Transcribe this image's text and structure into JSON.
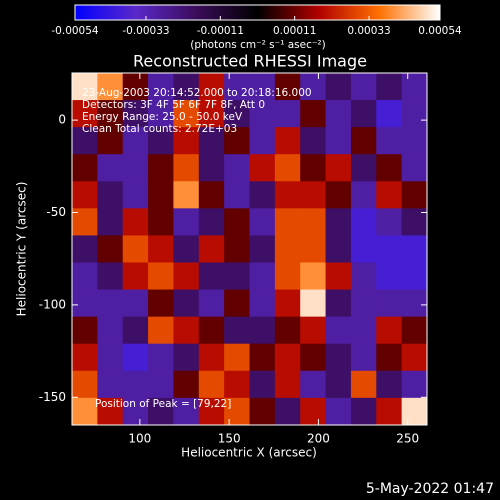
{
  "chart_data": {
    "type": "heatmap",
    "title": "Reconstructed RHESSI Image",
    "x_label": "Heliocentric X (arcsec)",
    "y_label": "Heliocentric Y (arcsec)",
    "colorbar_label": "(photons cm⁻² s⁻¹ asec⁻²)",
    "annotations": [
      "23-Aug-2003 20:14:52.000 to 20:18:16.000",
      "Detectors: 3F 4F 5F 6F 7F 8F, Att 0",
      "Energy Range: 25.0 - 50.0 keV",
      "Clean    Total counts: 2.72E+03",
      "Position of Peak = [79,22]"
    ],
    "footer": "5-May-2022 01:47",
    "xlim": [
      62,
      260.8
    ],
    "ylim": [
      -165,
      25.5
    ],
    "xticks": [
      100,
      150,
      200,
      250
    ],
    "yticks": [
      -150,
      -100,
      -50,
      0
    ],
    "clim": [
      -0.00054,
      0.00054
    ],
    "cticks": [
      -0.00054,
      -0.00033,
      -0.00011,
      0.00011,
      0.00033,
      0.00054
    ],
    "colormap": [
      "#0000ff",
      "#5a28c8",
      "#3a0c5a",
      "#000000",
      "#b00000",
      "#ff7000",
      "#ffffff"
    ],
    "xbins": [
      62,
      76.2,
      90.4,
      104.6,
      118.8,
      133,
      147.2,
      161.4,
      175.6,
      189.8,
      204,
      218.2,
      232.4,
      246.6,
      260.8
    ],
    "ybins": [
      25.5,
      10.85,
      -3.8,
      -18.45,
      -33.1,
      -47.75,
      -62.4,
      -77.05,
      -91.7,
      -106.35,
      -121,
      -135.65,
      -150.3,
      -165
    ],
    "z": [
      [
        0.0005,
        0.0004,
        0.0001,
        -0.0003,
        -0.0002,
        0.0002,
        -0.0003,
        -0.0003,
        0.0001,
        -0.0003,
        -0.0002,
        -0.0003,
        -0.0002,
        -0.0003
      ],
      [
        0.0002,
        0.0001,
        -0.0002,
        -0.0003,
        0.0003,
        0.0002,
        -0.0002,
        -0.0003,
        -0.0003,
        0.0001,
        -0.0003,
        -0.0002,
        -0.0004,
        -0.0003
      ],
      [
        -0.0002,
        0.0001,
        -0.0003,
        -0.0002,
        0.0002,
        -0.0002,
        0.0001,
        -0.0003,
        0.0002,
        -0.0002,
        -0.0003,
        0.0001,
        -0.0003,
        -0.0003
      ],
      [
        0.0001,
        -0.0003,
        -0.0003,
        0.0001,
        0.0003,
        -0.0002,
        -0.0003,
        0.0002,
        0.0003,
        0.0001,
        0.0002,
        -0.0002,
        0.0001,
        -0.0003
      ],
      [
        0.0002,
        -0.0002,
        -0.0003,
        0.0001,
        0.0004,
        0.0001,
        -0.0003,
        -0.0002,
        0.0002,
        0.0002,
        0.0001,
        -0.0003,
        0.0002,
        0.0001
      ],
      [
        0.0003,
        -0.0002,
        0.0002,
        0.0001,
        -0.0003,
        -0.0002,
        0.0001,
        -0.0003,
        0.0003,
        0.0003,
        -0.0002,
        -0.0004,
        -0.0003,
        -0.0002
      ],
      [
        -0.0002,
        0.0001,
        0.0003,
        0.0002,
        -0.0002,
        0.0002,
        0.0001,
        -0.0002,
        0.0003,
        0.0003,
        -0.0002,
        -0.0004,
        -0.0004,
        -0.0004
      ],
      [
        -0.0003,
        -0.0002,
        0.0002,
        0.0003,
        0.0002,
        -0.0002,
        -0.0002,
        -0.0003,
        0.0003,
        0.0004,
        0.0002,
        -0.0003,
        -0.0004,
        -0.0004
      ],
      [
        -0.0003,
        -0.0003,
        -0.0003,
        0.0001,
        -0.0002,
        -0.0003,
        0.0001,
        -0.0003,
        0.0002,
        0.0005,
        -0.0002,
        -0.0003,
        -0.0003,
        -0.0003
      ],
      [
        0.0001,
        -0.0003,
        -0.0002,
        0.0003,
        0.0002,
        0.0001,
        -0.0002,
        -0.0002,
        0.0001,
        0.0002,
        -0.0003,
        -0.0003,
        0.0002,
        0.0001
      ],
      [
        0.0002,
        -0.0003,
        -0.0004,
        -0.0003,
        -0.0002,
        0.0002,
        0.0003,
        0.0001,
        0.0002,
        0.0001,
        -0.0002,
        -0.0003,
        0.0001,
        0.0002
      ],
      [
        0.0003,
        -0.0003,
        -0.0003,
        -0.0003,
        0.0001,
        0.0003,
        0.0002,
        -0.0002,
        0.0002,
        -0.0003,
        -0.0002,
        0.0003,
        -0.0002,
        -0.0003
      ],
      [
        0.0004,
        0.0002,
        -0.0003,
        -0.0002,
        -0.0003,
        0.0002,
        0.0003,
        0.0001,
        -0.0002,
        0.0002,
        -0.0003,
        -0.0002,
        0.0002,
        0.0005
      ]
    ]
  }
}
